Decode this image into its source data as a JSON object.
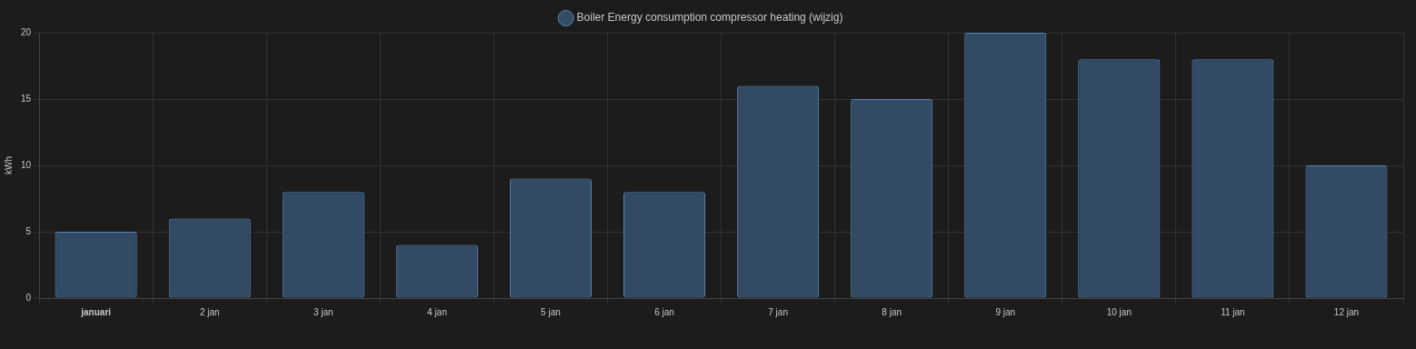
{
  "chart_data": {
    "type": "bar",
    "ylabel": "kWh",
    "categories": [
      "januari",
      "2 jan",
      "3 jan",
      "4 jan",
      "5 jan",
      "6 jan",
      "7 jan",
      "8 jan",
      "9 jan",
      "10 jan",
      "11 jan",
      "12 jan"
    ],
    "series": [
      {
        "name": "Boiler Energy consumption compressor heating (wijzig)",
        "color": "#324a63",
        "values": [
          5,
          6,
          8,
          4,
          9,
          8,
          16,
          15,
          20,
          18,
          18,
          10
        ]
      }
    ],
    "ylim": [
      0,
      20
    ],
    "yticks": [
      0,
      5,
      10,
      15,
      20
    ],
    "grid": true,
    "legend": "top"
  }
}
